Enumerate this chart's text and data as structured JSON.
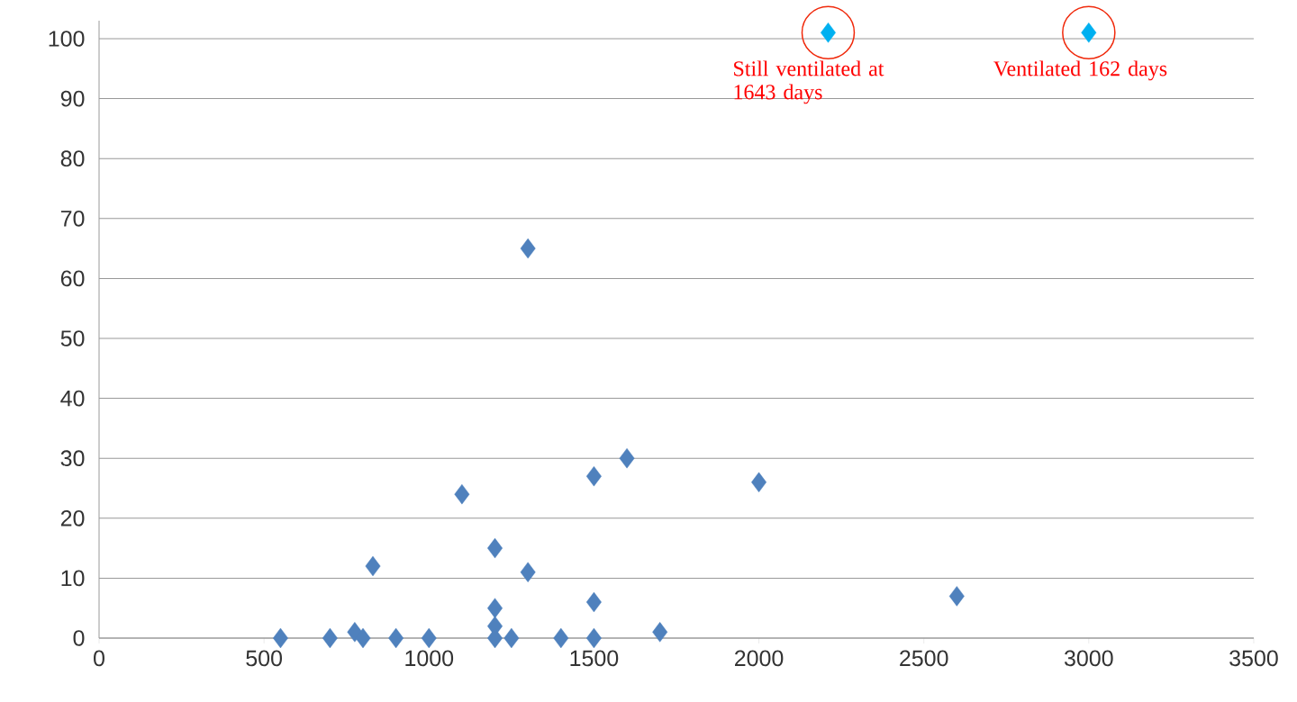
{
  "chart_data": {
    "type": "scatter",
    "marker": "diamond",
    "grid": "y",
    "xlim": [
      0,
      3500
    ],
    "xticks": [
      0,
      500,
      1000,
      1500,
      2000,
      2500,
      3000,
      3500
    ],
    "ylim": [
      0,
      103
    ],
    "yticks": [
      0,
      10,
      20,
      30,
      40,
      50,
      60,
      70,
      80,
      90,
      100
    ],
    "series": [
      {
        "color": "#4f81bd",
        "x": [
          550,
          700,
          775,
          800,
          830,
          900,
          1000,
          1100,
          1200,
          1200,
          1200,
          1200,
          1250,
          1300,
          1300,
          1400,
          1500,
          1500,
          1500,
          1600,
          1700,
          2000,
          2600
        ],
        "values": [
          0,
          0,
          1,
          0,
          12,
          0,
          0,
          24,
          15,
          5,
          2,
          0,
          0,
          65,
          11,
          0,
          27,
          6,
          0,
          30,
          1,
          26,
          7
        ]
      },
      {
        "color": "#00b0f0",
        "x": [
          2210,
          3000
        ],
        "values": [
          101,
          101
        ]
      }
    ],
    "annotations": [
      {
        "text": "Still ventilated at 1643 days",
        "x": 2210,
        "y": 101
      },
      {
        "text": "Ventilated 162 days",
        "x": 3000,
        "y": 101
      }
    ]
  }
}
